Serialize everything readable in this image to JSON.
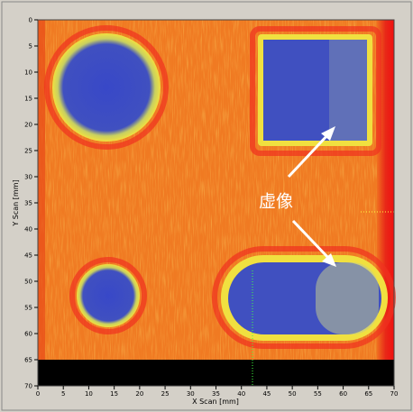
{
  "axes": {
    "x": {
      "label": "X Scan [mm]",
      "lim": [
        0,
        70
      ],
      "ticks": [
        0,
        5,
        10,
        15,
        20,
        25,
        30,
        35,
        40,
        45,
        50,
        55,
        60,
        65,
        70
      ]
    },
    "y": {
      "label": "Y Scan [mm]",
      "lim": [
        0,
        70
      ],
      "ticks": [
        0,
        5,
        10,
        15,
        20,
        25,
        30,
        35,
        40,
        45,
        50,
        55,
        60,
        65,
        70
      ]
    }
  },
  "annotation": "虚像"
}
